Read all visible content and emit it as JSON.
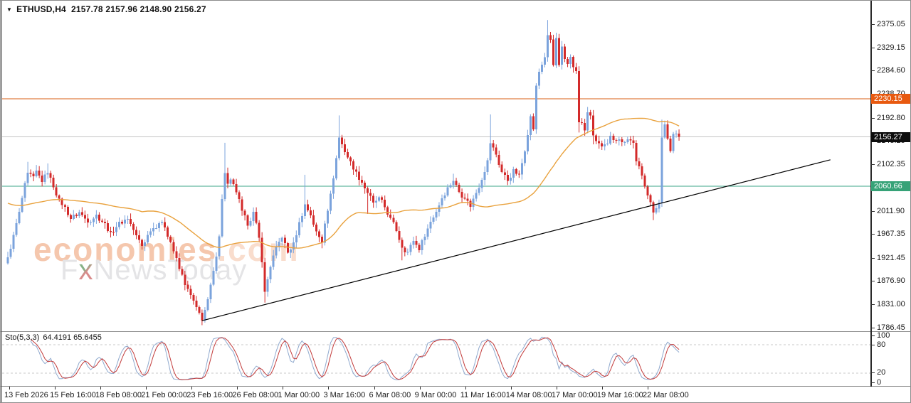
{
  "window": {
    "symbol_period": "ETHUSD,H4",
    "quotes": "2157.78 2157.96 2148.90 2156.27"
  },
  "watermark": {
    "brand": "economies",
    "brand_suffix": ".com",
    "tagline_f": "F",
    "tagline_x": "x",
    "tagline_rest": "NewsToday"
  },
  "price_axis": {
    "ticks": [
      "2375.05",
      "2329.15",
      "2284.60",
      "2238.70",
      "2192.80",
      "2148.25",
      "2102.35",
      "2056.45",
      "2011.90",
      "1967.35",
      "1921.45",
      "1876.90",
      "1831.00",
      "1786.45"
    ],
    "badges": [
      {
        "label": "2230.15",
        "price": 2230.15,
        "bg": "#E8590F",
        "role": "resistance"
      },
      {
        "label": "2156.27",
        "price": 2156.27,
        "bg": "#0d0d0d",
        "role": "current-price"
      },
      {
        "label": "2060.66",
        "price": 2060.66,
        "bg": "#36A277",
        "role": "support"
      }
    ]
  },
  "time_axis": {
    "labels": [
      "13 Feb 2026",
      "15 Feb 16:00",
      "18 Feb 08:00",
      "21 Feb 00:00",
      "23 Feb 16:00",
      "26 Feb 08:00",
      "1 Mar 00:00",
      "3 Mar 16:00",
      "6 Mar 08:00",
      "9 Mar 00:00",
      "11 Mar 16:00",
      "14 Mar 08:00",
      "17 Mar 00:00",
      "19 Mar 16:00",
      "22 Mar 08:00"
    ]
  },
  "indicator": {
    "label": "Sto(5,3,3)",
    "values": "64.4191 65.6455",
    "scale": [
      "100",
      "80",
      "20",
      "0"
    ],
    "scale_values": [
      100,
      80,
      20,
      0
    ],
    "level_lines": [
      80,
      20
    ]
  },
  "chart_data": {
    "type": "candlestick",
    "symbol": "ETHUSD",
    "timeframe": "H4",
    "ohlc": {
      "open": 2157.78,
      "high": 2157.96,
      "low": 2148.9,
      "close": 2156.27
    },
    "price_range_visible": {
      "max": 2375.05,
      "min": 1786.45
    },
    "colors": {
      "bull": "#7BA3DC",
      "bear": "#D32A2A",
      "ma": "#E9A23E",
      "trendline": "#000000",
      "sto_main": "#8FA9CE",
      "sto_signal": "#C23B3B",
      "level_resistance": "#D85F16",
      "level_support": "#3BA487",
      "level_current": "#C4C4C4",
      "sto_grid": "#c9c9c9"
    },
    "levels": [
      {
        "price": 2230.15,
        "role": "resistance",
        "color": "#D85F16"
      },
      {
        "price": 2156.27,
        "role": "current-price",
        "color": "#C4C4C4"
      },
      {
        "price": 2060.66,
        "role": "support",
        "color": "#3BA487"
      }
    ],
    "trendline": {
      "from_bar": 68,
      "from_price": 1800,
      "to_bar": 288,
      "to_price": 2112
    },
    "moving_average": {
      "method": "SMA",
      "period": 48
    },
    "stochastic": {
      "k": 5,
      "d": 3,
      "slowing": 3,
      "last_main": 64.4191,
      "last_signal": 65.6455
    },
    "bars_count": 236,
    "close_anchors": [
      [
        0,
        1922
      ],
      [
        2,
        1965
      ],
      [
        4,
        2010
      ],
      [
        6,
        2065
      ],
      [
        7,
        2085
      ],
      [
        9,
        2078
      ],
      [
        10,
        2090
      ],
      [
        12,
        2070
      ],
      [
        14,
        2088
      ],
      [
        16,
        2060
      ],
      [
        18,
        2035
      ],
      [
        20,
        2020
      ],
      [
        22,
        1998
      ],
      [
        25,
        2010
      ],
      [
        28,
        1992
      ],
      [
        31,
        2005
      ],
      [
        34,
        1988
      ],
      [
        36,
        1970
      ],
      [
        39,
        1990
      ],
      [
        42,
        1998
      ],
      [
        45,
        1965
      ],
      [
        47,
        1945
      ],
      [
        50,
        1975
      ],
      [
        53,
        1990
      ],
      [
        55,
        1982
      ],
      [
        57,
        1953
      ],
      [
        60,
        1900
      ],
      [
        63,
        1860
      ],
      [
        66,
        1825
      ],
      [
        68,
        1802
      ],
      [
        70,
        1840
      ],
      [
        72,
        1895
      ],
      [
        74,
        1965
      ],
      [
        75,
        2035
      ],
      [
        76,
        2087
      ],
      [
        77,
        2065
      ],
      [
        78,
        2072
      ],
      [
        80,
        2050
      ],
      [
        82,
        2012
      ],
      [
        84,
        1986
      ],
      [
        86,
        2010
      ],
      [
        88,
        1960
      ],
      [
        89,
        1915
      ],
      [
        90,
        1855
      ],
      [
        92,
        1905
      ],
      [
        94,
        1942
      ],
      [
        96,
        1962
      ],
      [
        98,
        1932
      ],
      [
        100,
        1950
      ],
      [
        102,
        1990
      ],
      [
        104,
        2025
      ],
      [
        106,
        2005
      ],
      [
        108,
        1972
      ],
      [
        110,
        1952
      ],
      [
        111,
        1990
      ],
      [
        113,
        2045
      ],
      [
        115,
        2115
      ],
      [
        116,
        2155
      ],
      [
        118,
        2128
      ],
      [
        120,
        2108
      ],
      [
        122,
        2088
      ],
      [
        124,
        2068
      ],
      [
        126,
        2048
      ],
      [
        128,
        2028
      ],
      [
        130,
        2038
      ],
      [
        132,
        2020
      ],
      [
        134,
        1998
      ],
      [
        136,
        1975
      ],
      [
        138,
        1943
      ],
      [
        140,
        1933
      ],
      [
        142,
        1955
      ],
      [
        144,
        1938
      ],
      [
        146,
        1965
      ],
      [
        148,
        1992
      ],
      [
        150,
        2012
      ],
      [
        152,
        2038
      ],
      [
        154,
        2058
      ],
      [
        156,
        2072
      ],
      [
        158,
        2050
      ],
      [
        160,
        2038
      ],
      [
        162,
        2022
      ],
      [
        164,
        2048
      ],
      [
        166,
        2075
      ],
      [
        168,
        2110
      ],
      [
        169,
        2145
      ],
      [
        171,
        2122
      ],
      [
        173,
        2088
      ],
      [
        175,
        2072
      ],
      [
        177,
        2092
      ],
      [
        179,
        2082
      ],
      [
        181,
        2130
      ],
      [
        182,
        2162
      ],
      [
        183,
        2196
      ],
      [
        184,
        2172
      ],
      [
        185,
        2255
      ],
      [
        186,
        2283
      ],
      [
        188,
        2312
      ],
      [
        189,
        2352
      ],
      [
        190,
        2345
      ],
      [
        191,
        2295
      ],
      [
        192,
        2348
      ],
      [
        193,
        2295
      ],
      [
        194,
        2330
      ],
      [
        195,
        2306
      ],
      [
        196,
        2298
      ],
      [
        197,
        2312
      ],
      [
        198,
        2293
      ],
      [
        199,
        2283
      ],
      [
        200,
        2185
      ],
      [
        201,
        2183
      ],
      [
        202,
        2168
      ],
      [
        203,
        2205
      ],
      [
        204,
        2196
      ],
      [
        205,
        2160
      ],
      [
        206,
        2148
      ],
      [
        208,
        2136
      ],
      [
        210,
        2142
      ],
      [
        211,
        2160
      ],
      [
        213,
        2150
      ],
      [
        215,
        2148
      ],
      [
        217,
        2152
      ],
      [
        219,
        2146
      ],
      [
        220,
        2108
      ],
      [
        221,
        2098
      ],
      [
        223,
        2062
      ],
      [
        224,
        2045
      ],
      [
        225,
        2030
      ],
      [
        226,
        2008
      ],
      [
        227,
        2018
      ],
      [
        228,
        2030
      ],
      [
        229,
        2157
      ],
      [
        230,
        2180
      ],
      [
        231,
        2152
      ],
      [
        232,
        2130
      ],
      [
        233,
        2162
      ],
      [
        234,
        2163
      ],
      [
        235,
        2156.27
      ]
    ],
    "wick_overrides": [
      {
        "bar": 7,
        "high": 2108
      },
      {
        "bar": 14,
        "high": 2105
      },
      {
        "bar": 68,
        "low": 1797
      },
      {
        "bar": 76,
        "high": 2145
      },
      {
        "bar": 90,
        "low": 1835
      },
      {
        "bar": 104,
        "high": 2083
      },
      {
        "bar": 116,
        "high": 2198
      },
      {
        "bar": 126,
        "low": 2007
      },
      {
        "bar": 138,
        "low": 1917
      },
      {
        "bar": 156,
        "high": 2085
      },
      {
        "bar": 169,
        "high": 2200
      },
      {
        "bar": 189,
        "high": 2383
      },
      {
        "bar": 200,
        "low": 2165
      },
      {
        "bar": 205,
        "low": 2142
      },
      {
        "bar": 226,
        "low": 1995
      },
      {
        "bar": 229,
        "high": 2190
      }
    ]
  }
}
